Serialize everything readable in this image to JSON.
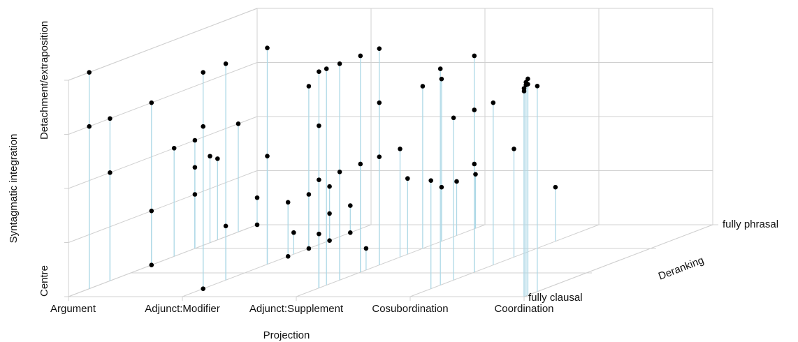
{
  "chart_data": {
    "type": "scatter3d",
    "xlabel": "Projection",
    "ylabel": "Syntagmatic integration",
    "zlabel": "Deranking",
    "categories": [
      "Argument",
      "Adjunct:Modifier",
      "Adjunct:Supplement",
      "Cosubordination",
      "Coordination"
    ],
    "ylim": [
      0,
      4
    ],
    "yticks": [
      {
        "value": 0,
        "label": "Centre"
      },
      {
        "value": 1,
        "label": null
      },
      {
        "value": 2,
        "label": null
      },
      {
        "value": 3,
        "label": null
      },
      {
        "value": 4,
        "label": "Detachment/extraposition"
      }
    ],
    "zlim": [
      0,
      1
    ],
    "zticks": [
      {
        "value": 0,
        "label": "fully clausal"
      },
      {
        "value": 0.33,
        "label": null
      },
      {
        "value": 0.67,
        "label": null
      },
      {
        "value": 1,
        "label": "fully phrasal"
      }
    ],
    "grid": true,
    "series": [
      {
        "color": "#000000",
        "stem_color": "#add8e6",
        "x": [
          "Argument",
          "Argument",
          "Argument",
          "Argument",
          "Argument",
          "Argument",
          "Argument",
          "Argument",
          "Argument",
          "Argument",
          "Argument",
          "Adjunct:Modifier",
          "Adjunct:Modifier",
          "Adjunct:Modifier",
          "Argument",
          "Argument",
          "Adjunct:Modifier",
          "Adjunct:Modifier",
          "Argument",
          "Argument",
          "Argument",
          "Adjunct:Modifier",
          "Adjunct:Modifier",
          "Adjunct:Modifier",
          "Adjunct:Modifier",
          "Adjunct:Modifier",
          "Adjunct:Modifier",
          "Adjunct:Modifier",
          "Adjunct:Modifier",
          "Adjunct:Supplement",
          "Adjunct:Supplement",
          "Adjunct:Supplement",
          "Adjunct:Supplement",
          "Adjunct:Supplement",
          "Adjunct:Modifier",
          "Adjunct:Modifier",
          "Adjunct:Modifier",
          "Adjunct:Supplement",
          "Adjunct:Supplement",
          "Adjunct:Modifier",
          "Adjunct:Modifier",
          "Adjunct:Supplement",
          "Adjunct:Supplement",
          "Adjunct:Supplement",
          "Adjunct:Supplement",
          "Adjunct:Supplement",
          "Adjunct:Supplement",
          "Adjunct:Supplement",
          "Adjunct:Supplement",
          "Adjunct:Supplement",
          "Cosubordination",
          "Cosubordination",
          "Adjunct:Supplement",
          "Adjunct:Supplement",
          "Cosubordination",
          "Adjunct:Supplement",
          "Cosubordination",
          "Cosubordination",
          "Cosubordination",
          "Adjunct:Supplement",
          "Cosubordination",
          "Cosubordination",
          "Coordination",
          "Coordination",
          "Coordination",
          "Coordination",
          "Coordination",
          "Coordination",
          "Coordination",
          "Cosubordination"
        ],
        "z": [
          0.11,
          0.11,
          0.22,
          0.22,
          0.44,
          0.44,
          0.44,
          0.56,
          0.67,
          0.67,
          0.67,
          0.11,
          0.11,
          0.11,
          0.75,
          0.79,
          0.23,
          0.23,
          0.9,
          1,
          1,
          0.45,
          0.45,
          0.56,
          0.56,
          0.59,
          0.67,
          0.67,
          0.67,
          0.12,
          0.12,
          0.12,
          0.12,
          0.16,
          0.78,
          0.78,
          0.78,
          0.23,
          0.23,
          0.89,
          0.89,
          0.34,
          0.34,
          0.37,
          0.44,
          0.44,
          0.44,
          0.55,
          0.59,
          0.67,
          0.11,
          0.16,
          0.77,
          0.77,
          0.23,
          0.85,
          0.34,
          0.34,
          0.34,
          0.95,
          0.44,
          0.55,
          0,
          0.01,
          0.01,
          0.02,
          0.02,
          0,
          0.07,
          0.77
        ],
        "y": [
          4,
          3,
          3,
          2,
          3,
          1,
          0,
          2,
          2,
          1.5,
          1,
          4,
          3,
          0,
          1.6,
          1.5,
          4,
          1,
          2,
          0.5,
          0,
          4,
          2,
          1,
          0,
          0.4,
          3,
          1,
          0,
          4,
          3,
          2,
          1,
          4,
          1,
          0.5,
          0,
          4,
          2,
          0.5,
          0,
          4,
          2,
          0.4,
          4,
          3,
          2,
          2,
          1.4,
          3,
          2,
          4,
          1,
          3,
          3,
          1,
          4,
          3,
          2,
          1,
          3,
          2,
          3.8,
          3.9,
          3.95,
          4,
          3.9,
          3.85,
          3.8,
          1
        ]
      }
    ]
  }
}
